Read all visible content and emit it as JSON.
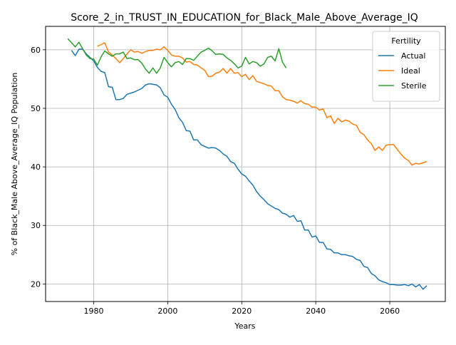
{
  "chart_data": {
    "type": "line",
    "title": "Score_2_in_TRUST_IN_EDUCATION_for_Black_Male_Above_Average_IQ",
    "xlabel": "Years",
    "ylabel": "% of Black_Male Above_Average_IQ Population",
    "xlim": [
      1967,
      2075
    ],
    "ylim": [
      17,
      64
    ],
    "xticks": [
      1980,
      2000,
      2020,
      2040,
      2060
    ],
    "yticks": [
      20,
      30,
      40,
      50,
      60
    ],
    "grid": true,
    "legend": {
      "title": "Fertility",
      "position": "top-right"
    },
    "series": [
      {
        "name": "Actual",
        "color": "#1f77b4",
        "x": [
          1974,
          1975,
          1976,
          1977,
          1978,
          1979,
          1980,
          1981,
          1982,
          1983,
          1984,
          1985,
          1986,
          1987,
          1988,
          1989,
          1990,
          1991,
          1992,
          1993,
          1994,
          1995,
          1996,
          1997,
          1998,
          1999,
          2000,
          2001,
          2002,
          2003,
          2004,
          2005,
          2006,
          2007,
          2008,
          2009,
          2010,
          2011,
          2012,
          2013,
          2014,
          2015,
          2016,
          2017,
          2018,
          2019,
          2020,
          2021,
          2022,
          2023,
          2024,
          2025,
          2026,
          2027,
          2028,
          2029,
          2030,
          2031,
          2032,
          2033,
          2034,
          2035,
          2036,
          2037,
          2038,
          2039,
          2040,
          2041,
          2042,
          2043,
          2044,
          2045,
          2046,
          2047,
          2048,
          2049,
          2050,
          2051,
          2052,
          2053,
          2054,
          2055,
          2056,
          2057,
          2058,
          2059,
          2060,
          2061,
          2062,
          2063,
          2064,
          2065,
          2066,
          2067,
          2068,
          2069,
          2070
        ],
        "y": [
          59.9,
          59.0,
          60.1,
          60.1,
          59.3,
          58.7,
          58.1,
          57.0,
          56.3,
          56.1,
          53.7,
          53.6,
          51.5,
          51.5,
          51.7,
          52.4,
          52.6,
          52.8,
          53.1,
          53.4,
          54.0,
          54.2,
          54.1,
          54.0,
          53.5,
          52.3,
          51.9,
          50.7,
          49.8,
          48.4,
          47.6,
          46.2,
          46.1,
          44.6,
          44.6,
          43.8,
          43.5,
          43.2,
          43.3,
          43.2,
          42.8,
          42.2,
          41.8,
          40.9,
          40.6,
          39.6,
          38.8,
          38.4,
          37.6,
          36.9,
          35.8,
          35.0,
          34.4,
          33.7,
          33.3,
          32.9,
          32.7,
          32.1,
          31.9,
          31.4,
          31.7,
          30.7,
          30.8,
          29.2,
          29.2,
          28.0,
          28.2,
          27.1,
          27.1,
          26.0,
          25.9,
          25.3,
          25.3,
          25.0,
          25.0,
          24.8,
          24.7,
          24.2,
          24.0,
          23.0,
          22.8,
          21.8,
          21.4,
          20.7,
          20.4,
          20.2,
          19.9,
          19.9,
          19.8,
          19.8,
          19.9,
          19.7,
          20.0,
          19.5,
          19.9,
          19.1,
          19.7
        ]
      },
      {
        "name": "Ideal",
        "color": "#ff7f0e",
        "x": [
          1981,
          1982,
          1983,
          1984,
          1985,
          1986,
          1987,
          1988,
          1989,
          1990,
          1991,
          1992,
          1993,
          1994,
          1995,
          1996,
          1997,
          1998,
          1999,
          2000,
          2001,
          2002,
          2003,
          2004,
          2005,
          2006,
          2007,
          2008,
          2009,
          2010,
          2011,
          2012,
          2013,
          2014,
          2015,
          2016,
          2017,
          2018,
          2019,
          2020,
          2021,
          2022,
          2023,
          2024,
          2025,
          2026,
          2027,
          2028,
          2029,
          2030,
          2031,
          2032,
          2033,
          2034,
          2035,
          2036,
          2037,
          2038,
          2039,
          2040,
          2041,
          2042,
          2043,
          2044,
          2045,
          2046,
          2047,
          2048,
          2049,
          2050,
          2051,
          2052,
          2053,
          2054,
          2055,
          2056,
          2057,
          2058,
          2059,
          2060,
          2061,
          2062,
          2063,
          2064,
          2065,
          2066,
          2067,
          2068,
          2069,
          2070
        ],
        "y": [
          60.6,
          60.9,
          61.2,
          59.6,
          59.1,
          58.5,
          57.8,
          58.5,
          59.3,
          60.0,
          59.6,
          59.7,
          59.4,
          59.7,
          59.9,
          59.9,
          60.1,
          60.0,
          60.5,
          59.9,
          59.1,
          58.9,
          58.9,
          58.6,
          57.9,
          58.0,
          57.5,
          57.4,
          56.9,
          56.5,
          55.4,
          55.5,
          56.0,
          56.2,
          56.8,
          56.0,
          56.8,
          56.0,
          56.1,
          55.4,
          55.8,
          54.9,
          55.6,
          54.6,
          54.4,
          54.2,
          53.9,
          53.8,
          53.0,
          53.0,
          52.0,
          51.5,
          51.4,
          51.2,
          50.9,
          51.3,
          50.8,
          50.7,
          50.2,
          50.2,
          49.7,
          49.9,
          48.4,
          48.7,
          47.4,
          48.3,
          47.7,
          48.0,
          47.8,
          47.3,
          47.1,
          45.9,
          45.5,
          44.6,
          44.0,
          42.8,
          43.4,
          42.8,
          43.7,
          43.8,
          43.8,
          43.0,
          42.2,
          41.5,
          41.1,
          40.3,
          40.6,
          40.5,
          40.7,
          40.9
        ]
      },
      {
        "name": "Sterile",
        "color": "#2ca02c",
        "x": [
          1973,
          1974,
          1975,
          1976,
          1977,
          1978,
          1979,
          1980,
          1981,
          1982,
          1983,
          1984,
          1985,
          1986,
          1987,
          1988,
          1989,
          1990,
          1991,
          1992,
          1993,
          1994,
          1995,
          1996,
          1997,
          1998,
          1999,
          2000,
          2001,
          2002,
          2003,
          2004,
          2005,
          2006,
          2007,
          2008,
          2009,
          2010,
          2011,
          2012,
          2013,
          2014,
          2015,
          2016,
          2017,
          2018,
          2019,
          2020,
          2021,
          2022,
          2023,
          2024,
          2025,
          2026,
          2027,
          2028,
          2029,
          2030,
          2031,
          2032
        ],
        "y": [
          61.9,
          61.2,
          60.5,
          61.3,
          60.2,
          59.1,
          58.5,
          58.4,
          57.4,
          58.8,
          59.8,
          59.3,
          58.9,
          59.3,
          59.3,
          59.6,
          58.5,
          58.6,
          58.3,
          58.3,
          57.7,
          56.7,
          56.0,
          56.9,
          56.0,
          56.9,
          58.7,
          57.8,
          57.1,
          57.8,
          58.0,
          57.5,
          58.5,
          58.5,
          58.2,
          58.9,
          59.6,
          59.9,
          60.3,
          59.8,
          59.2,
          59.3,
          59.2,
          58.6,
          58.2,
          57.6,
          56.9,
          57.2,
          58.7,
          57.6,
          58.0,
          57.8,
          57.2,
          57.6,
          58.7,
          58.9,
          58.1,
          60.2,
          57.9,
          56.9
        ]
      }
    ]
  }
}
